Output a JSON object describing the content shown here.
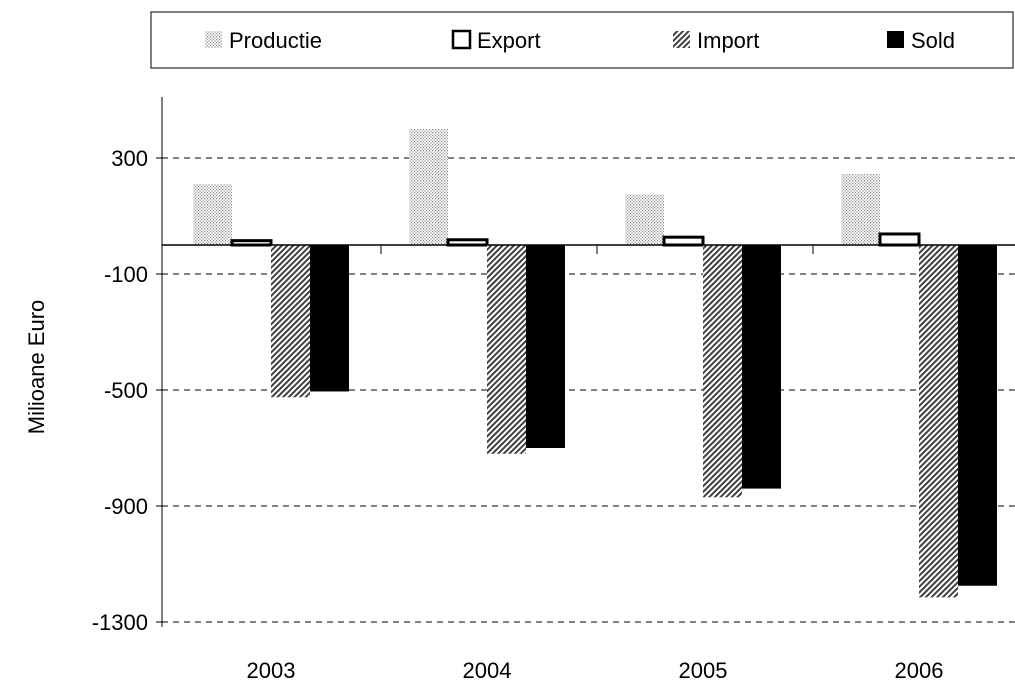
{
  "chart_data": {
    "type": "bar",
    "title": "",
    "xlabel": "",
    "ylabel": "Milioane Euro",
    "categories": [
      "2003",
      "2004",
      "2005",
      "2006"
    ],
    "series": [
      {
        "name": "Productie",
        "values": [
          210,
          400,
          175,
          245
        ],
        "fill": "dots"
      },
      {
        "name": "Export",
        "values": [
          15,
          18,
          27,
          38
        ],
        "fill": "white"
      },
      {
        "name": "Import",
        "values": [
          -525,
          -720,
          -870,
          -1215
        ],
        "fill": "hatch"
      },
      {
        "name": "Sold",
        "values": [
          -505,
          -700,
          -840,
          -1175
        ],
        "fill": "black"
      }
    ],
    "ylim": [
      -1300,
      420
    ],
    "yticks": [
      300,
      -100,
      -500,
      -900,
      -1300
    ],
    "ytick_labels": [
      "300",
      "-100",
      "-500",
      "-900",
      "-1300"
    ],
    "grid": "dashed horizontal",
    "legend_position": "top"
  }
}
